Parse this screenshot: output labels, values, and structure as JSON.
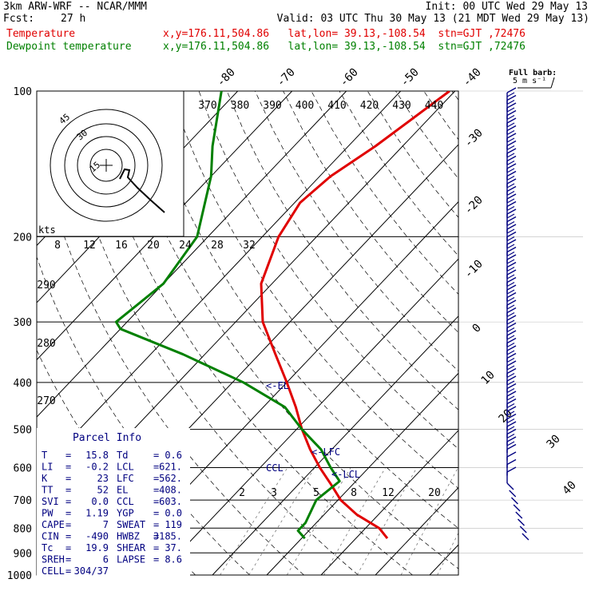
{
  "header": {
    "model": "3km ARW-WRF -- NCAR/MMM",
    "init": "Init: 00 UTC Wed 29 May 13",
    "fcst_label": "Fcst:",
    "fcst_value": "27 h",
    "valid": "Valid: 03 UTC Thu 30 May 13 (21 MDT Wed 29 May 13)",
    "temp_label": "Temperature",
    "temp_info": "x,y=176.11,504.86   lat,lon= 39.13,-108.54  stn=GJT ,72476",
    "dew_label": "Dewpoint temperature",
    "dew_info": "x,y=176.11,504.86   lat,lon= 39.13,-108.54  stn=GJT ,72476"
  },
  "barb_legend": {
    "line1": "Full barb:",
    "line2": "5 m s⁻¹"
  },
  "hodograph": {
    "kts_label": "kts",
    "rings": [
      "15",
      "30",
      "45"
    ]
  },
  "parcel": {
    "title": "Parcel Info",
    "rows": [
      {
        "k1": "T",
        "v1": "15.8",
        "k2": "Td",
        "v2": "0.6"
      },
      {
        "k1": "LI",
        "v1": "-0.2",
        "k2": "LCL",
        "v2": "621."
      },
      {
        "k1": "K",
        "v1": "23",
        "k2": "LFC",
        "v2": "562."
      },
      {
        "k1": "TT",
        "v1": "52",
        "k2": "EL",
        "v2": "408."
      },
      {
        "k1": "SVI",
        "v1": "0.0",
        "k2": "CCL",
        "v2": "603."
      },
      {
        "k1": "PW",
        "v1": "1.19",
        "k2": "YGP",
        "v2": "0.0"
      },
      {
        "k1": "CAPE",
        "v1": "7",
        "k2": "SWEAT",
        "v2": "119"
      },
      {
        "k1": "CIN",
        "v1": "-490",
        "k2": "HWBZ",
        "v2": "3185."
      },
      {
        "k1": "Tc",
        "v1": "19.9",
        "k2": "SHEAR",
        "v2": "37."
      },
      {
        "k1": "SREH",
        "v1": "6",
        "k2": "LAPSE",
        "v2": "8.6"
      },
      {
        "k1": "CELL",
        "v1": "304/37",
        "k2": "",
        "v2": ""
      }
    ]
  },
  "level_markers": {
    "el": "<-EL",
    "lfc": "<-LFC",
    "lcl": "<-LCL",
    "ccl": "CCL"
  },
  "colors": {
    "temperature": "#e00000",
    "dewpoint": "#008000",
    "barbs": "#000080",
    "grid": "#000000",
    "mixing": "#777777"
  },
  "chart_data": {
    "type": "line",
    "title": "3km ARW-WRF -- NCAR/MMM",
    "y_axis": {
      "label": "",
      "scale": "log",
      "ylim": [
        1000,
        100
      ],
      "ticks": [
        100,
        200,
        300,
        400,
        500,
        600,
        700,
        800,
        900,
        1000
      ]
    },
    "isotherm_labels": [
      -80,
      -70,
      -60,
      -50,
      -40,
      -30,
      -20,
      -10,
      0,
      10,
      20,
      30,
      40
    ],
    "theta_labels": [
      370,
      380,
      390,
      400,
      410,
      420,
      430,
      440
    ],
    "theta_e_labels": [
      290,
      280,
      270
    ],
    "mixing_ratio_top": [
      8,
      12,
      16,
      20,
      24,
      28,
      32
    ],
    "mixing_ratio_bottom": [
      2,
      3,
      5,
      8,
      12,
      20
    ],
    "series": [
      {
        "name": "Temperature",
        "points": [
          [
            840,
            15.8
          ],
          [
            800,
            12.5
          ],
          [
            750,
            6
          ],
          [
            700,
            0.5
          ],
          [
            650,
            -4
          ],
          [
            600,
            -9
          ],
          [
            550,
            -14
          ],
          [
            500,
            -19
          ],
          [
            450,
            -24
          ],
          [
            400,
            -30
          ],
          [
            350,
            -37
          ],
          [
            300,
            -45
          ],
          [
            250,
            -52
          ],
          [
            200,
            -57
          ],
          [
            170,
            -59
          ],
          [
            150,
            -58
          ],
          [
            130,
            -55
          ],
          [
            100,
            -51
          ]
        ]
      },
      {
        "name": "Dewpoint temperature",
        "points": [
          [
            840,
            0.6
          ],
          [
            810,
            -2
          ],
          [
            780,
            -2
          ],
          [
            700,
            -4
          ],
          [
            640,
            -3
          ],
          [
            600,
            -7
          ],
          [
            550,
            -12
          ],
          [
            500,
            -19
          ],
          [
            450,
            -26
          ],
          [
            400,
            -38
          ],
          [
            350,
            -54
          ],
          [
            310,
            -70
          ],
          [
            300,
            -72
          ],
          [
            250,
            -70
          ],
          [
            200,
            -72
          ],
          [
            150,
            -80
          ],
          [
            130,
            -85
          ],
          [
            100,
            -93
          ]
        ]
      }
    ]
  }
}
